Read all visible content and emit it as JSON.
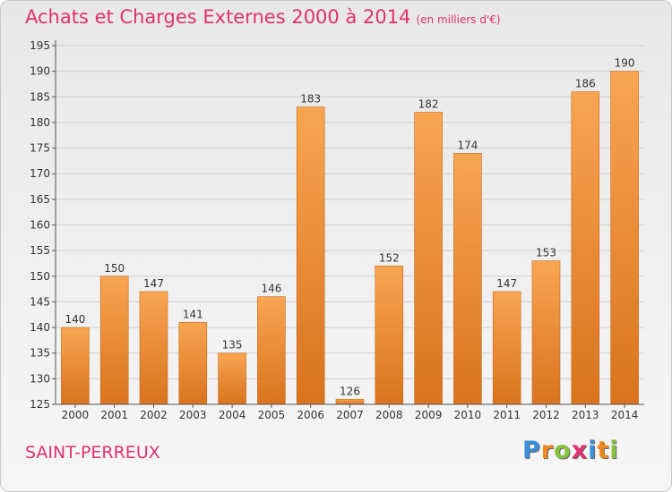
{
  "title": "Achats et Charges Externes 2000 à 2014",
  "subtitle": "(en milliers d'€)",
  "city": "SAINT-PERREUX",
  "logo": {
    "letters": [
      "P",
      "r",
      "o",
      "x",
      "i",
      "t",
      "i"
    ],
    "colors": [
      "#3a8fd8",
      "#f08a1c",
      "#86c440",
      "#e0306f",
      "#3a8fd8",
      "#f08a1c",
      "#86c440"
    ]
  },
  "colors": {
    "title": "#e0306f",
    "bar_top": "#f8a552",
    "bar_bottom": "#d9731e",
    "grid": "#cfcfcf",
    "axis": "#555555"
  },
  "chart_data": {
    "type": "bar",
    "categories": [
      "2000",
      "2001",
      "2002",
      "2003",
      "2004",
      "2005",
      "2006",
      "2007",
      "2008",
      "2009",
      "2010",
      "2011",
      "2012",
      "2013",
      "2014"
    ],
    "values": [
      140,
      150,
      147,
      141,
      135,
      146,
      183,
      126,
      152,
      182,
      174,
      147,
      153,
      186,
      190
    ],
    "title": "Achats et Charges Externes 2000 à 2014",
    "ylim": [
      125,
      195
    ],
    "yticks": [
      125,
      130,
      135,
      140,
      145,
      150,
      155,
      160,
      165,
      170,
      175,
      180,
      185,
      190,
      195
    ],
    "grid": true,
    "data_labels": true
  }
}
